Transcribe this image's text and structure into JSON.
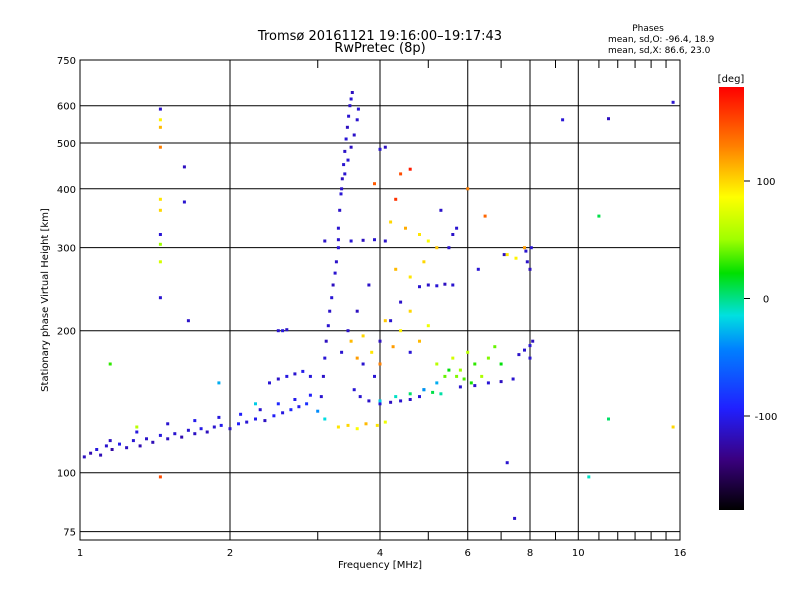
{
  "chart_data": {
    "type": "scatter",
    "title": "Tromsø 20161121 19:16:00–19:17:43",
    "subtitle": "RwPretec (8p)",
    "stats": {
      "heading": "Phases",
      "line_o": "mean, sd,O: -96.4, 18.9",
      "line_x": "mean, sd,X:  86.6, 23.0"
    },
    "xlabel": "Frequency [MHz]",
    "ylabel": "Stationary phase Virtual Height [km]",
    "x_scale": "log",
    "y_scale": "log",
    "xlim": [
      1,
      16
    ],
    "ylim": [
      72,
      750
    ],
    "grid": true,
    "x_major_ticks": [
      {
        "value": 1,
        "label": "1"
      },
      {
        "value": 2,
        "label": "2"
      },
      {
        "value": 4,
        "label": "4"
      },
      {
        "value": 6,
        "label": "6"
      },
      {
        "value": 8,
        "label": "8"
      },
      {
        "value": 10,
        "label": "10"
      },
      {
        "value": 16,
        "label": "16"
      }
    ],
    "x_minor_ticks": [
      3,
      5,
      7,
      9,
      11,
      12,
      13,
      14,
      15
    ],
    "y_major_ticks": [
      {
        "value": 75,
        "label": "75"
      },
      {
        "value": 100,
        "label": "100"
      },
      {
        "value": 200,
        "label": "200"
      },
      {
        "value": 300,
        "label": "300"
      },
      {
        "value": 400,
        "label": "400"
      },
      {
        "value": 500,
        "label": "500"
      },
      {
        "value": 600,
        "label": "600"
      },
      {
        "value": 750,
        "label": "750"
      }
    ],
    "colorbar": {
      "label": "[deg]",
      "range": [
        -180,
        180
      ],
      "ticks": [
        {
          "value": 100,
          "label": "100"
        },
        {
          "value": 0,
          "label": "0"
        },
        {
          "value": -100,
          "label": "-100"
        }
      ]
    },
    "series": [
      {
        "points": [
          [
            1.02,
            108,
            -115
          ],
          [
            1.05,
            110,
            -120
          ],
          [
            1.08,
            112,
            -105
          ],
          [
            1.1,
            109,
            -118
          ],
          [
            1.13,
            114,
            -110
          ],
          [
            1.16,
            112,
            -125
          ],
          [
            1.2,
            115,
            -100
          ],
          [
            1.24,
            113,
            -115
          ],
          [
            1.28,
            117,
            -108
          ],
          [
            1.32,
            114,
            -120
          ],
          [
            1.36,
            118,
            -112
          ],
          [
            1.4,
            116,
            -118
          ],
          [
            1.45,
            120,
            -105
          ],
          [
            1.5,
            118,
            -115
          ],
          [
            1.55,
            121,
            -110
          ],
          [
            1.6,
            119,
            -120
          ],
          [
            1.65,
            123,
            -108
          ],
          [
            1.7,
            121,
            -114
          ],
          [
            1.75,
            124,
            -102
          ],
          [
            1.8,
            122,
            -116
          ],
          [
            1.86,
            125,
            -110
          ],
          [
            1.92,
            126,
            -100
          ],
          [
            2.0,
            124,
            -112
          ],
          [
            2.08,
            127,
            -95
          ],
          [
            2.16,
            128,
            -108
          ],
          [
            2.25,
            130,
            -100
          ],
          [
            2.35,
            129,
            -114
          ],
          [
            2.45,
            132,
            -96
          ],
          [
            2.55,
            134,
            -104
          ],
          [
            2.65,
            136,
            -90
          ],
          [
            2.75,
            138,
            -100
          ],
          [
            2.85,
            140,
            -85
          ],
          [
            1.15,
            117,
            -115
          ],
          [
            1.3,
            122,
            -105
          ],
          [
            1.5,
            127,
            -110
          ],
          [
            1.7,
            129,
            -100
          ],
          [
            1.9,
            131,
            -105
          ],
          [
            2.1,
            133,
            -95
          ],
          [
            2.3,
            136,
            -110
          ],
          [
            2.5,
            140,
            -90
          ],
          [
            2.7,
            143,
            -100
          ],
          [
            2.9,
            146,
            -95
          ],
          [
            2.4,
            155,
            -108
          ],
          [
            2.5,
            158,
            -112
          ],
          [
            2.6,
            160,
            -104
          ],
          [
            2.7,
            162,
            -110
          ],
          [
            2.8,
            164,
            -100
          ],
          [
            2.9,
            160,
            -106
          ],
          [
            2.5,
            200,
            -110
          ],
          [
            2.55,
            200,
            -105
          ],
          [
            2.6,
            201,
            -112
          ],
          [
            3.05,
            145,
            -110
          ],
          [
            3.08,
            160,
            -112
          ],
          [
            3.1,
            175,
            -108
          ],
          [
            3.12,
            190,
            -115
          ],
          [
            3.15,
            205,
            -110
          ],
          [
            3.17,
            220,
            -112
          ],
          [
            3.2,
            235,
            -108
          ],
          [
            3.22,
            250,
            -115
          ],
          [
            3.25,
            265,
            -110
          ],
          [
            3.27,
            280,
            -112
          ],
          [
            3.3,
            300,
            -108
          ],
          [
            3.3,
            330,
            -110
          ],
          [
            3.32,
            360,
            -112
          ],
          [
            3.34,
            390,
            -108
          ],
          [
            3.36,
            420,
            -115
          ],
          [
            3.38,
            450,
            -110
          ],
          [
            3.4,
            480,
            -112
          ],
          [
            3.42,
            510,
            -108
          ],
          [
            3.44,
            540,
            -115
          ],
          [
            3.46,
            570,
            -110
          ],
          [
            3.48,
            600,
            -112
          ],
          [
            3.5,
            620,
            -108
          ],
          [
            3.52,
            640,
            -115
          ],
          [
            3.35,
            400,
            -112
          ],
          [
            3.4,
            430,
            -110
          ],
          [
            3.45,
            460,
            -108
          ],
          [
            3.5,
            490,
            -115
          ],
          [
            3.55,
            520,
            -112
          ],
          [
            3.6,
            560,
            -110
          ],
          [
            3.62,
            590,
            -108
          ],
          [
            3.65,
            145,
            -110
          ],
          [
            3.8,
            142,
            -112
          ],
          [
            4.0,
            140,
            -108
          ],
          [
            4.2,
            141,
            -115
          ],
          [
            4.4,
            142,
            -110
          ],
          [
            4.6,
            143,
            -112
          ],
          [
            4.8,
            145,
            -108
          ],
          [
            3.1,
            310,
            -112
          ],
          [
            3.3,
            312,
            -110
          ],
          [
            3.5,
            310,
            -108
          ],
          [
            3.7,
            311,
            -115
          ],
          [
            3.9,
            312,
            -110
          ],
          [
            4.1,
            310,
            -112
          ],
          [
            4.8,
            248,
            -110
          ],
          [
            5.0,
            250,
            -112
          ],
          [
            5.2,
            249,
            -108
          ],
          [
            5.4,
            251,
            -115
          ],
          [
            5.6,
            250,
            -110
          ],
          [
            5.6,
            320,
            -112
          ],
          [
            5.7,
            330,
            -110
          ],
          [
            4.0,
            485,
            -108
          ],
          [
            4.1,
            490,
            -115
          ],
          [
            5.8,
            152,
            -110
          ],
          [
            6.2,
            153,
            -112
          ],
          [
            6.6,
            155,
            -108
          ],
          [
            7.0,
            156,
            -115
          ],
          [
            7.4,
            158,
            -110
          ],
          [
            7.6,
            178,
            -112
          ],
          [
            7.8,
            182,
            -110
          ],
          [
            8.0,
            186,
            -108
          ],
          [
            8.1,
            190,
            -115
          ],
          [
            8.0,
            175,
            -110
          ],
          [
            7.9,
            280,
            -112
          ],
          [
            7.85,
            295,
            -110
          ],
          [
            8.05,
            300,
            -108
          ],
          [
            8.0,
            270,
            -115
          ],
          [
            1.45,
            590,
            -112
          ],
          [
            1.45,
            235,
            -110
          ],
          [
            1.45,
            320,
            -108
          ],
          [
            1.62,
            445,
            -115
          ],
          [
            1.62,
            375,
            -110
          ],
          [
            1.65,
            210,
            -112
          ],
          [
            7.2,
            105,
            -110
          ],
          [
            7.45,
            80,
            -112
          ],
          [
            9.3,
            560,
            -108
          ],
          [
            11.5,
            563,
            -115
          ],
          [
            15.5,
            610,
            -110
          ],
          [
            5.3,
            360,
            -112
          ],
          [
            5.5,
            300,
            -110
          ],
          [
            6.3,
            270,
            -108
          ],
          [
            7.1,
            290,
            -115
          ],
          [
            3.35,
            180,
            -110
          ],
          [
            3.45,
            200,
            -112
          ],
          [
            3.55,
            150,
            -108
          ],
          [
            3.6,
            220,
            -115
          ],
          [
            3.7,
            170,
            -110
          ],
          [
            3.8,
            250,
            -112
          ],
          [
            3.9,
            160,
            -108
          ],
          [
            4.0,
            190,
            -115
          ],
          [
            4.2,
            210,
            -110
          ],
          [
            4.4,
            230,
            -112
          ],
          [
            4.6,
            180,
            -108
          ],
          [
            1.15,
            170,
            30
          ],
          [
            1.3,
            125,
            60
          ],
          [
            1.45,
            560,
            90
          ],
          [
            1.45,
            540,
            110
          ],
          [
            1.45,
            490,
            130
          ],
          [
            1.45,
            380,
            95
          ],
          [
            1.45,
            280,
            70
          ],
          [
            1.45,
            360,
            100
          ],
          [
            1.45,
            305,
            50
          ],
          [
            1.9,
            155,
            -30
          ],
          [
            2.25,
            140,
            -20
          ],
          [
            3.0,
            135,
            -40
          ],
          [
            3.1,
            130,
            -15
          ],
          [
            3.3,
            125,
            95
          ],
          [
            3.45,
            126,
            100
          ],
          [
            3.6,
            124,
            85
          ],
          [
            3.75,
            127,
            110
          ],
          [
            3.95,
            126,
            95
          ],
          [
            4.1,
            128,
            80
          ],
          [
            3.5,
            190,
            110
          ],
          [
            3.6,
            175,
            120
          ],
          [
            3.7,
            195,
            100
          ],
          [
            3.85,
            180,
            95
          ],
          [
            4.0,
            170,
            130
          ],
          [
            4.1,
            210,
            105
          ],
          [
            4.25,
            185,
            120
          ],
          [
            4.4,
            200,
            90
          ],
          [
            4.6,
            220,
            100
          ],
          [
            4.8,
            190,
            110
          ],
          [
            5.0,
            205,
            80
          ],
          [
            5.2,
            170,
            60
          ],
          [
            5.4,
            160,
            40
          ],
          [
            5.6,
            175,
            70
          ],
          [
            5.8,
            165,
            50
          ],
          [
            6.0,
            180,
            60
          ],
          [
            6.2,
            170,
            30
          ],
          [
            6.4,
            160,
            55
          ],
          [
            6.6,
            175,
            45
          ],
          [
            6.8,
            185,
            40
          ],
          [
            7.0,
            170,
            20
          ],
          [
            4.2,
            340,
            100
          ],
          [
            4.5,
            330,
            115
          ],
          [
            4.8,
            320,
            95
          ],
          [
            5.0,
            310,
            85
          ],
          [
            5.2,
            300,
            105
          ],
          [
            4.3,
            270,
            110
          ],
          [
            4.6,
            260,
            95
          ],
          [
            4.9,
            280,
            100
          ],
          [
            6.0,
            400,
            130
          ],
          [
            6.5,
            350,
            140
          ],
          [
            7.2,
            290,
            95
          ],
          [
            7.5,
            285,
            90
          ],
          [
            7.8,
            300,
            120
          ],
          [
            4.4,
            430,
            150
          ],
          [
            4.6,
            440,
            170
          ],
          [
            4.3,
            380,
            160
          ],
          [
            3.9,
            410,
            145
          ],
          [
            5.5,
            165,
            20
          ],
          [
            5.7,
            160,
            45
          ],
          [
            5.9,
            158,
            35
          ],
          [
            6.1,
            155,
            25
          ],
          [
            4.9,
            150,
            0
          ],
          [
            5.1,
            148,
            10
          ],
          [
            5.3,
            147,
            -5
          ],
          [
            11.0,
            350,
            10
          ],
          [
            11.5,
            130,
            5
          ],
          [
            10.5,
            98,
            -10
          ],
          [
            15.5,
            125,
            100
          ],
          [
            1.45,
            98,
            150
          ],
          [
            4.0,
            142,
            -20
          ],
          [
            4.3,
            145,
            -10
          ],
          [
            4.6,
            147,
            5
          ],
          [
            4.9,
            150,
            -40
          ],
          [
            5.2,
            155,
            -30
          ]
        ]
      }
    ]
  }
}
